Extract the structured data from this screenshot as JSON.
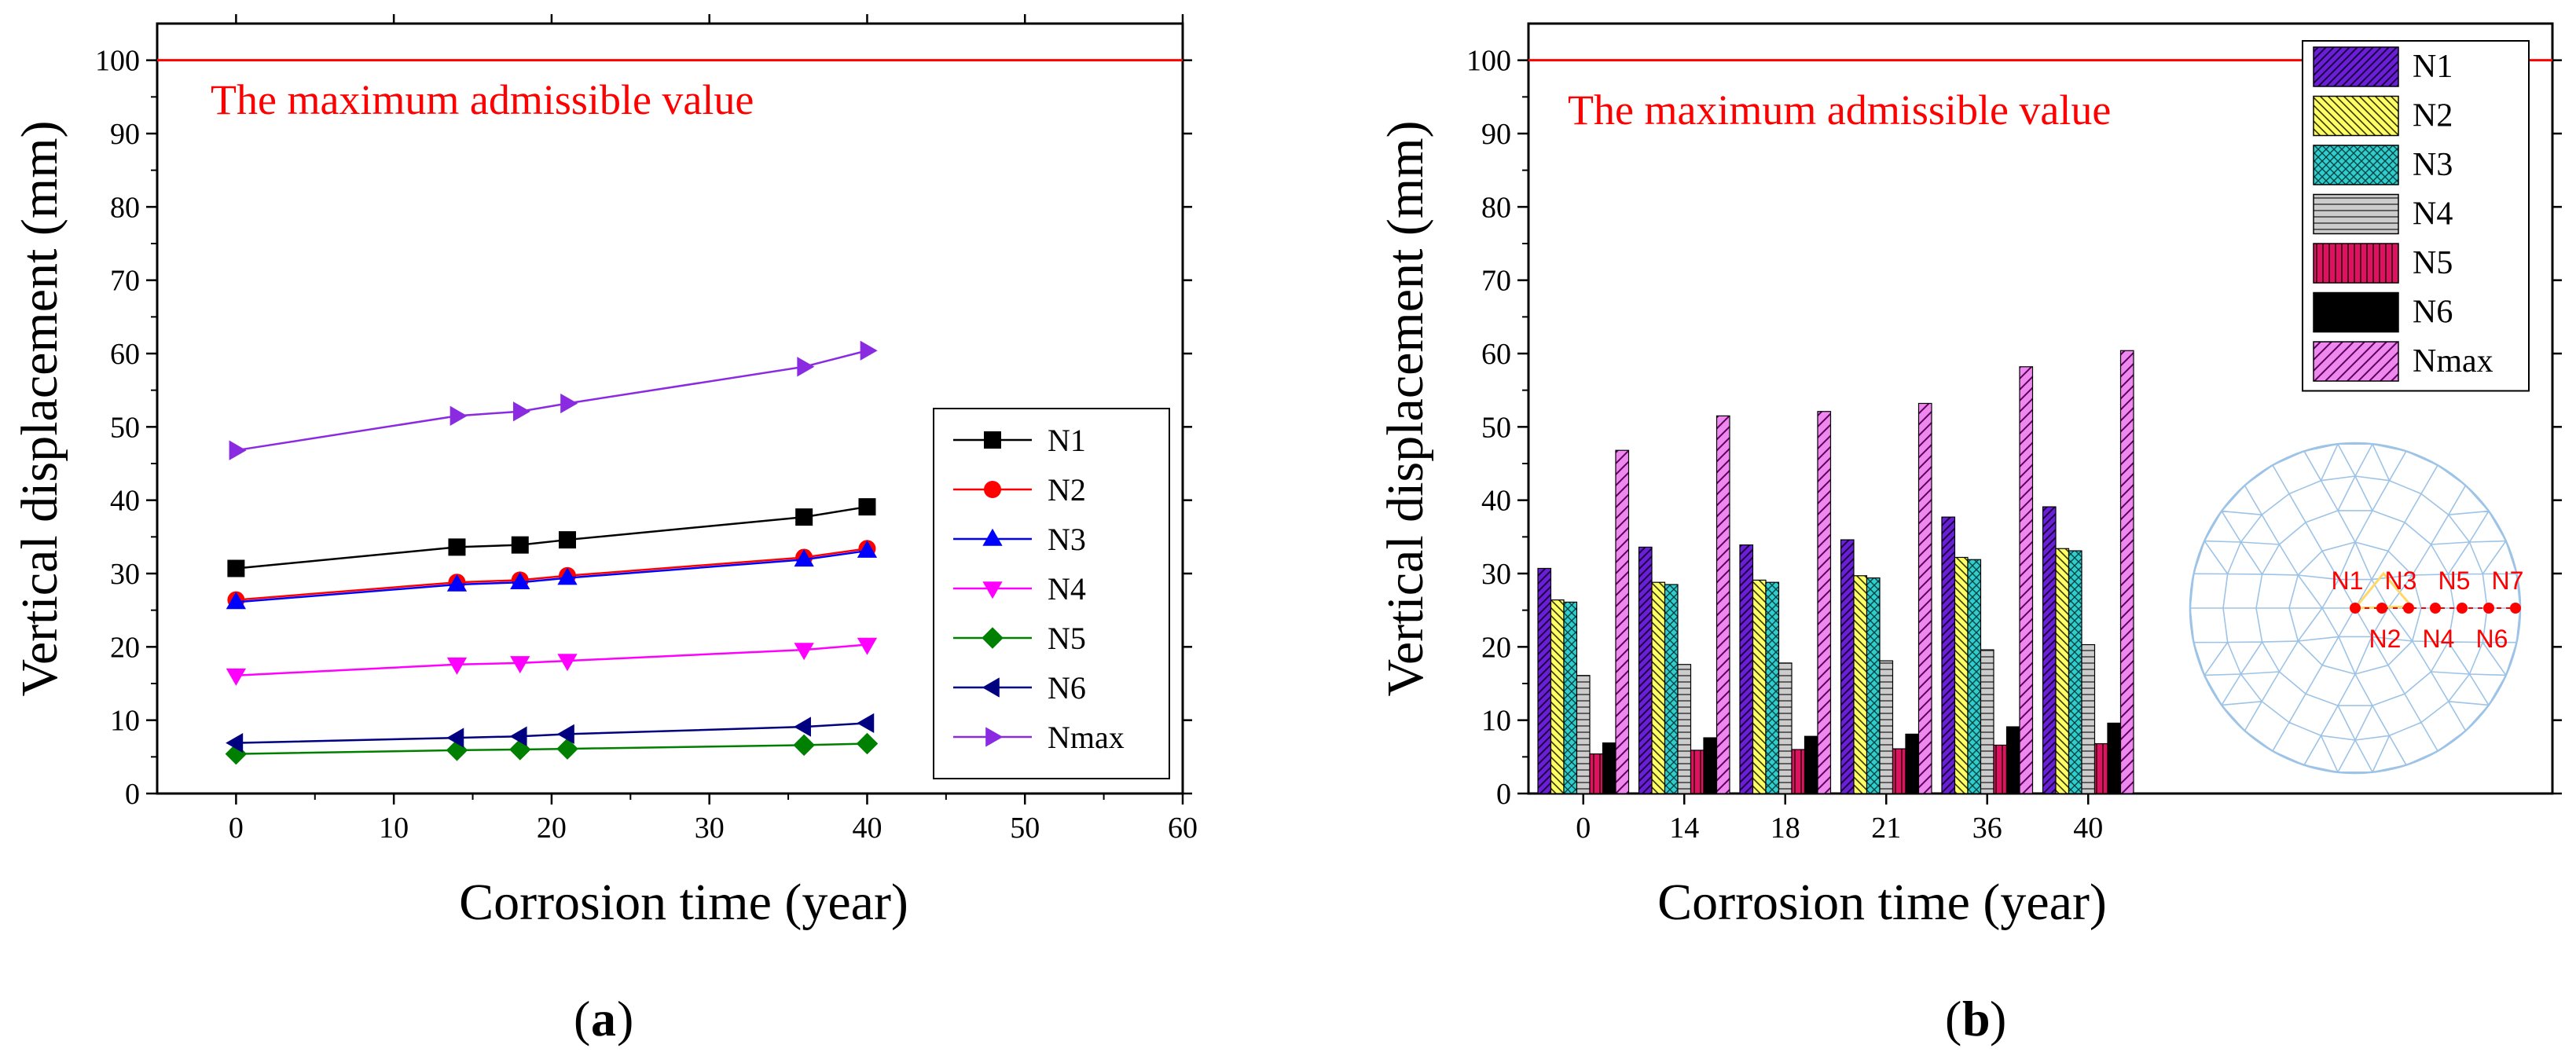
{
  "chart_data": [
    {
      "type": "line",
      "panel_label": "a",
      "xlabel": "Corrosion time (year)",
      "ylabel": "Vertical displacement (mm)",
      "xlim": [
        -5,
        60
      ],
      "ylim": [
        0,
        105
      ],
      "xticks": [
        "0",
        "10",
        "20",
        "30",
        "40",
        "50",
        "60"
      ],
      "yticks": [
        "0",
        "10",
        "20",
        "30",
        "40",
        "50",
        "60",
        "70",
        "80",
        "90",
        "100"
      ],
      "x": [
        0,
        14,
        18,
        21,
        36,
        40
      ],
      "threshold": {
        "value": 100,
        "label": "The maximum admissible value",
        "color": "#ff0000"
      },
      "legend_position": "right",
      "series": [
        {
          "name": "N1",
          "color": "#000000",
          "marker": "square",
          "values": [
            30.7,
            33.6,
            33.9,
            34.6,
            37.7,
            39.1
          ]
        },
        {
          "name": "N2",
          "color": "#ff0000",
          "marker": "circle",
          "values": [
            26.4,
            28.8,
            29.1,
            29.7,
            32.2,
            33.4
          ]
        },
        {
          "name": "N3",
          "color": "#0000ff",
          "marker": "triangle-up",
          "values": [
            26.1,
            28.5,
            28.8,
            29.4,
            31.9,
            33.1
          ]
        },
        {
          "name": "N4",
          "color": "#ff00ff",
          "marker": "triangle-down",
          "values": [
            16.1,
            17.6,
            17.8,
            18.1,
            19.6,
            20.3
          ]
        },
        {
          "name": "N5",
          "color": "#008000",
          "marker": "diamond",
          "values": [
            5.4,
            5.9,
            6.0,
            6.1,
            6.6,
            6.8
          ]
        },
        {
          "name": "N6",
          "color": "#000080",
          "marker": "triangle-left",
          "values": [
            6.9,
            7.6,
            7.8,
            8.1,
            9.1,
            9.6
          ]
        },
        {
          "name": "Nmax",
          "color": "#8a2be2",
          "marker": "triangle-right",
          "values": [
            46.8,
            51.5,
            52.1,
            53.2,
            58.2,
            60.4
          ]
        }
      ]
    },
    {
      "type": "bar",
      "panel_label": "b",
      "xlabel": "Corrosion time (year)",
      "ylabel": "Vertical displacement (mm)",
      "ylim": [
        0,
        105
      ],
      "categories": [
        "0",
        "14",
        "18",
        "21",
        "36",
        "40"
      ],
      "yticks": [
        "0",
        "10",
        "20",
        "30",
        "40",
        "50",
        "60",
        "70",
        "80",
        "90",
        "100"
      ],
      "threshold": {
        "value": 100,
        "label": "The maximum admissible value",
        "color": "#ff0000"
      },
      "legend_position": "top-right",
      "series": [
        {
          "name": "N1",
          "color": "#6a1fd6",
          "pattern": "diagonal",
          "values": [
            30.7,
            33.6,
            33.9,
            34.6,
            37.7,
            39.1
          ]
        },
        {
          "name": "N2",
          "color": "#ffff66",
          "pattern": "back-diagonal",
          "values": [
            26.4,
            28.8,
            29.1,
            29.7,
            32.2,
            33.4
          ]
        },
        {
          "name": "N3",
          "color": "#33cccc",
          "pattern": "crosshatch",
          "values": [
            26.1,
            28.5,
            28.8,
            29.4,
            31.9,
            33.1
          ]
        },
        {
          "name": "N4",
          "color": "#bbbbbb",
          "pattern": "horizontal",
          "values": [
            16.1,
            17.6,
            17.8,
            18.1,
            19.6,
            20.3
          ]
        },
        {
          "name": "N5",
          "color": "#e0115f",
          "pattern": "vertical",
          "values": [
            5.4,
            5.9,
            6.0,
            6.1,
            6.6,
            6.8
          ]
        },
        {
          "name": "N6",
          "color": "#000000",
          "pattern": "solid",
          "values": [
            6.9,
            7.6,
            7.8,
            8.1,
            9.1,
            9.6
          ]
        },
        {
          "name": "Nmax",
          "color": "#e878e8",
          "pattern": "wide-diagonal",
          "values": [
            46.8,
            51.5,
            52.1,
            53.2,
            58.2,
            60.4
          ]
        }
      ],
      "inset": {
        "description": "dome mesh with node locations",
        "node_labels_top": [
          "N1",
          "N3",
          "N5",
          "N7"
        ],
        "node_labels_bottom": [
          "N2",
          "N4",
          "N6"
        ]
      }
    }
  ]
}
